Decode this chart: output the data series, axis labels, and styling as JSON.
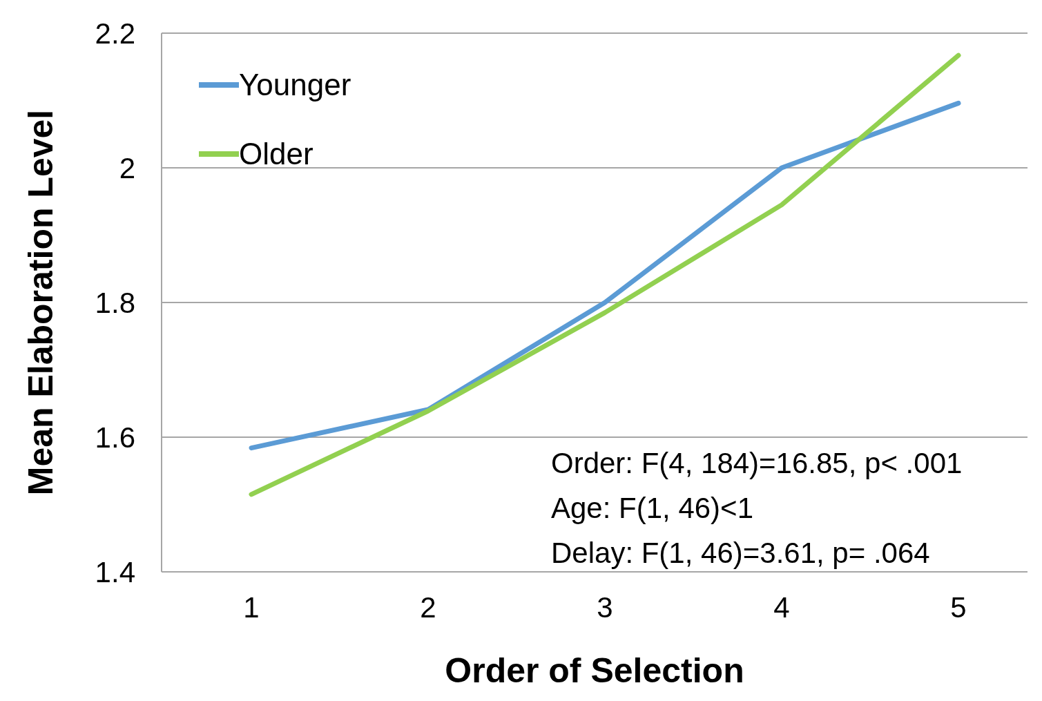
{
  "chart_data": {
    "type": "line",
    "xlabel": "Order of Selection",
    "ylabel": "Mean Elaboration Level",
    "categories": [
      "1",
      "2",
      "3",
      "4",
      "5"
    ],
    "series": [
      {
        "name": "Younger",
        "color": "#5b9bd5",
        "values": [
          1.584,
          1.641,
          1.8,
          2.0,
          2.096
        ]
      },
      {
        "name": "Older",
        "color": "#92d050",
        "values": [
          1.515,
          1.639,
          1.785,
          1.945,
          2.167
        ]
      }
    ],
    "ylim": [
      1.4,
      2.2
    ],
    "yticks": [
      1.4,
      1.6,
      1.8,
      2,
      2.2
    ],
    "grid": "y",
    "legend": "top left",
    "marker": "none",
    "line_style": "solid",
    "annotations": [
      "Order: F(4, 184)=16.85, p< .001",
      "Age: F(1, 46)<1",
      "Delay: F(1, 46)=3.61, p= .064"
    ]
  }
}
